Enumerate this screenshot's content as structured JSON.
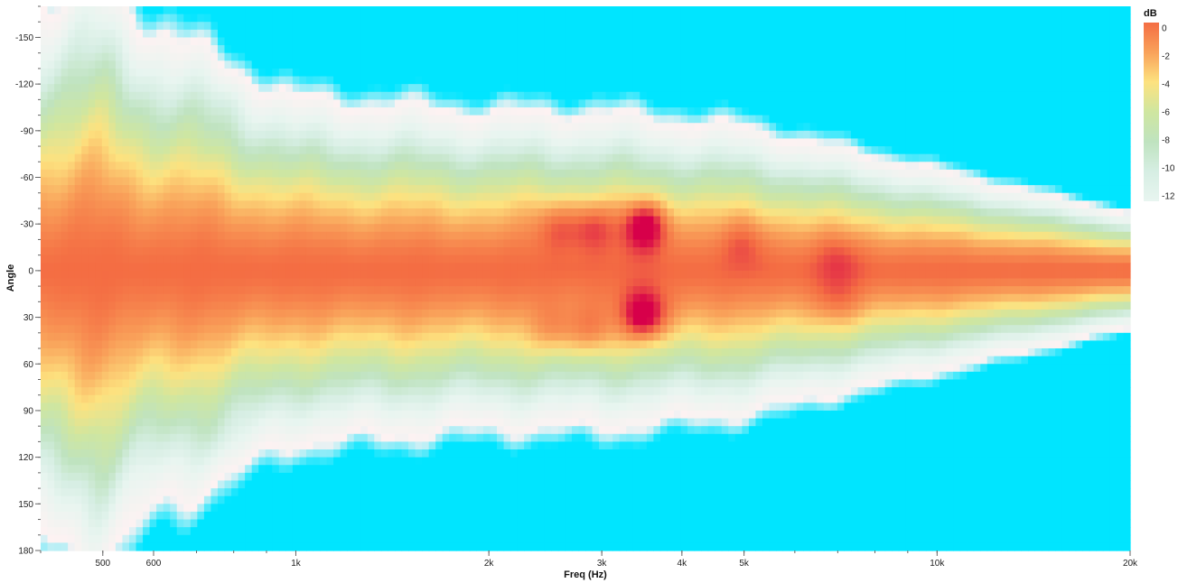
{
  "chart_data": {
    "type": "heatmap",
    "title": "",
    "xlabel": "Freq (Hz)",
    "ylabel": "Angle",
    "x_scale": "log",
    "xlim": [
      400,
      20000
    ],
    "ylim": [
      -170,
      180
    ],
    "x_ticks": [
      {
        "value": 500,
        "label": "500"
      },
      {
        "value": 600,
        "label": "600"
      },
      {
        "value": 1000,
        "label": "1k"
      },
      {
        "value": 2000,
        "label": "2k"
      },
      {
        "value": 3000,
        "label": "3k"
      },
      {
        "value": 4000,
        "label": "4k"
      },
      {
        "value": 5000,
        "label": "5k"
      },
      {
        "value": 10000,
        "label": "10k"
      },
      {
        "value": 20000,
        "label": "20k"
      }
    ],
    "y_ticks": [
      {
        "value": -150,
        "label": "-150"
      },
      {
        "value": -120,
        "label": "-120"
      },
      {
        "value": -90,
        "label": "-90"
      },
      {
        "value": -60,
        "label": "-60"
      },
      {
        "value": -30,
        "label": "-30"
      },
      {
        "value": 0,
        "label": "0"
      },
      {
        "value": 30,
        "label": "30"
      },
      {
        "value": 60,
        "label": "60"
      },
      {
        "value": 90,
        "label": "90"
      },
      {
        "value": 120,
        "label": "120"
      },
      {
        "value": 150,
        "label": "150"
      },
      {
        "value": 180,
        "label": "180"
      }
    ],
    "colorbar": {
      "title": "dB",
      "range": [
        -12,
        0
      ],
      "ticks": [
        {
          "value": 0,
          "label": "0"
        },
        {
          "value": -2,
          "label": "-2"
        },
        {
          "value": -4,
          "label": "-4"
        },
        {
          "value": -6,
          "label": "-6"
        },
        {
          "value": -8,
          "label": "-8"
        },
        {
          "value": -10,
          "label": "-10"
        },
        {
          "value": -12,
          "label": "-12"
        }
      ],
      "stops": [
        {
          "value": 0,
          "color": "#f46d43"
        },
        {
          "value": -2,
          "color": "#f9a25a"
        },
        {
          "value": -4,
          "color": "#fde27f"
        },
        {
          "value": -6,
          "color": "#cfe6a0"
        },
        {
          "value": -8,
          "color": "#bfe3bf"
        },
        {
          "value": -10,
          "color": "#d6eee3"
        },
        {
          "value": -12,
          "color": "#e8f5f0"
        }
      ],
      "legend_position": "right"
    },
    "colors": {
      "above_max": "#d7004a",
      "below_min": "#00e5ff",
      "neutral_low": "#fdf2f2"
    },
    "hotspots": [
      {
        "freq": 3500,
        "angle": -30,
        "level": 2.2
      },
      {
        "freq": 3500,
        "angle": 30,
        "level": 2.2
      },
      {
        "freq": 2900,
        "angle": -30,
        "level": 1.2
      },
      {
        "freq": 2900,
        "angle": 40,
        "level": 1.0
      },
      {
        "freq": 2550,
        "angle": -30,
        "level": 0.9
      },
      {
        "freq": 2550,
        "angle": 40,
        "level": 0.9
      },
      {
        "freq": 5000,
        "angle": -20,
        "level": 0.6
      },
      {
        "freq": 7000,
        "angle": -10,
        "level": 0.5
      },
      {
        "freq": 7000,
        "angle": 20,
        "level": 0.6
      },
      {
        "freq": 780,
        "angle": -110,
        "level": 0.5
      },
      {
        "freq": 780,
        "angle": 110,
        "level": 0.5
      }
    ],
    "beamwidth_profile": [
      {
        "freq": 400,
        "halfwidth_deg": 95
      },
      {
        "freq": 500,
        "halfwidth_deg": 100
      },
      {
        "freq": 600,
        "halfwidth_deg": 85
      },
      {
        "freq": 800,
        "halfwidth_deg": 70
      },
      {
        "freq": 1000,
        "halfwidth_deg": 60
      },
      {
        "freq": 2000,
        "halfwidth_deg": 55
      },
      {
        "freq": 3000,
        "halfwidth_deg": 55
      },
      {
        "freq": 5000,
        "halfwidth_deg": 50
      },
      {
        "freq": 10000,
        "halfwidth_deg": 35
      },
      {
        "freq": 20000,
        "halfwidth_deg": 20
      }
    ]
  }
}
